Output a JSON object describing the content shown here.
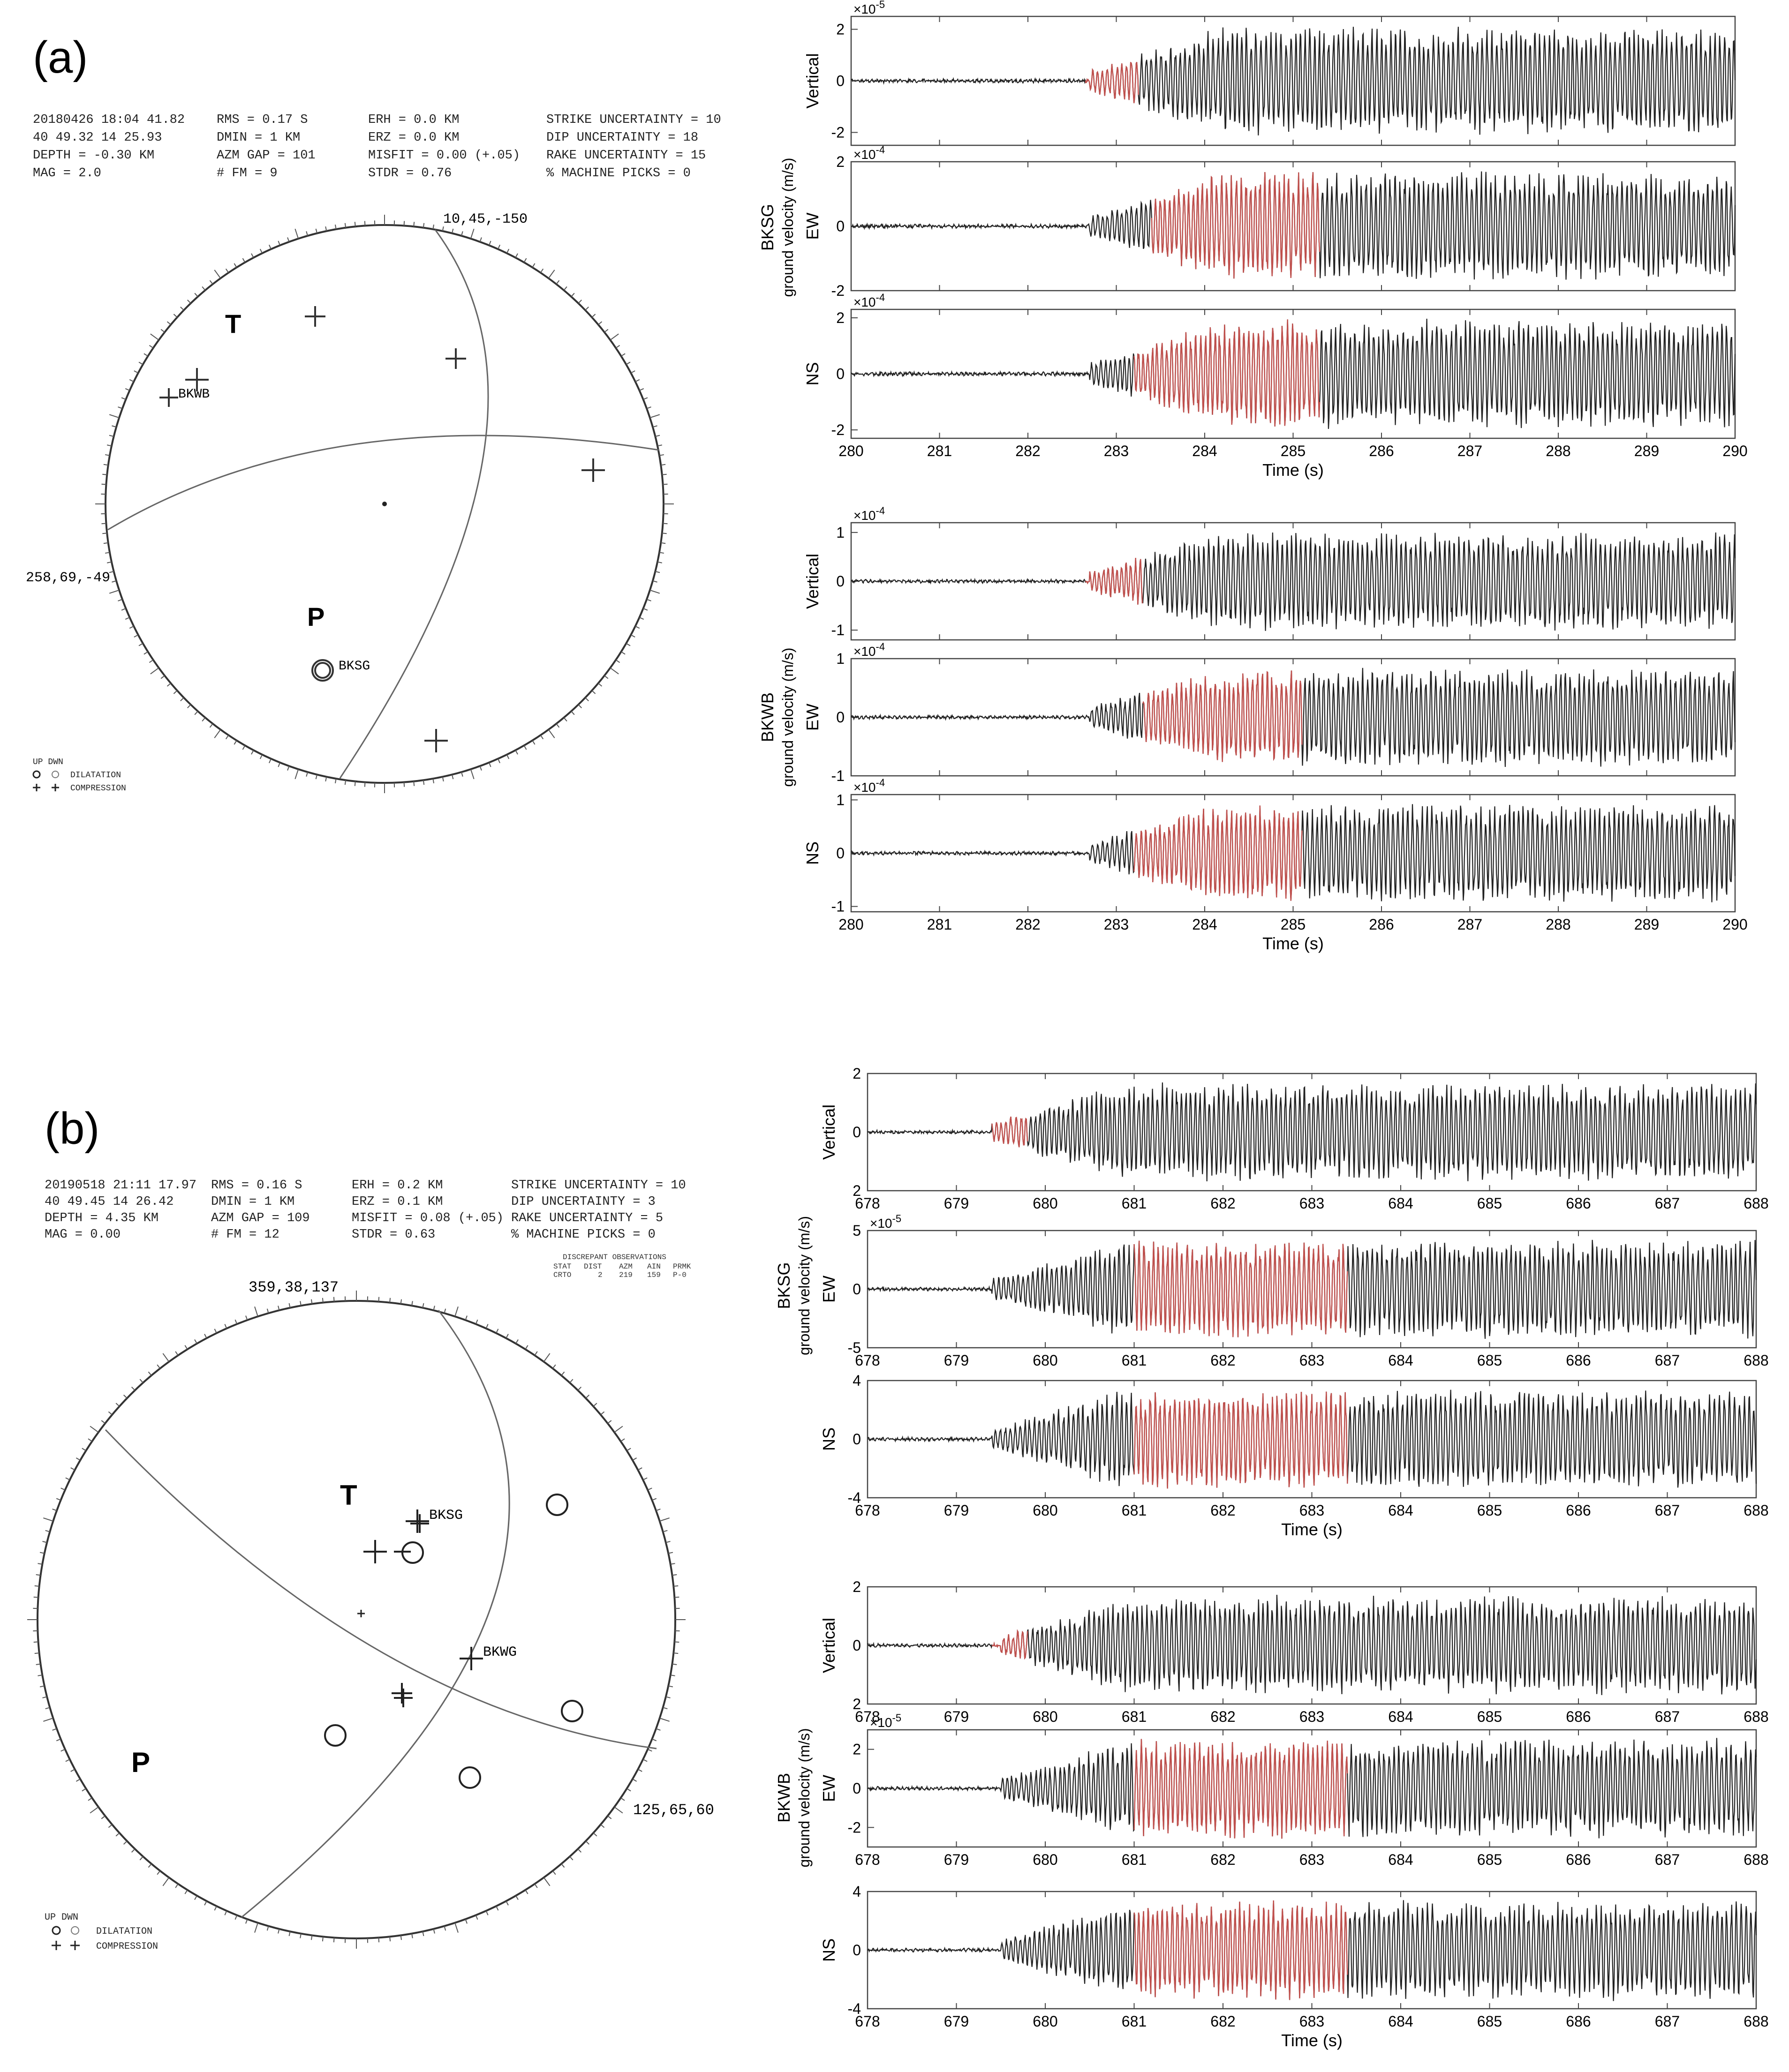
{
  "panels": [
    {
      "label": "(a)",
      "header": [
        [
          "20180426 18:04 41.82",
          "RMS =  0.17 S",
          "ERH =   0.0 KM",
          "STRIKE UNCERTAINTY =  10"
        ],
        [
          "40 49.32  14 25.93",
          "DMIN =    1 KM",
          "ERZ =   0.0 KM",
          "DIP UNCERTAINTY = 18"
        ],
        [
          "DEPTH = -0.30 KM",
          "AZM GAP = 101",
          "MISFIT = 0.00 (+.05)",
          "RAKE UNCERTAINTY =   15"
        ],
        [
          "MAG = 2.0",
          "# FM =    9",
          "STDR = 0.76",
          "% MACHINE PICKS =    0"
        ]
      ],
      "discrepant": null,
      "plane1_label": "10,45,-150",
      "plane2_label": "258,69,-49",
      "T_label": "T",
      "P_label": "P",
      "stations": [
        {
          "name": "BKWB",
          "type": "compression"
        },
        {
          "name": "BKSG",
          "type": "dilatation"
        }
      ],
      "legend": {
        "header": "UP DWN",
        "dilatation": "DILATATION",
        "compression": "COMPRESSION"
      }
    },
    {
      "label": "(b)",
      "header": [
        [
          "20190518 21:11 17.97",
          "RMS = 0.16 S",
          "ERH = 0.2 KM",
          "STRIKE UNCERTAINTY =  10"
        ],
        [
          "40 49.45  14 26.42",
          "DMIN =    1 KM",
          "ERZ = 0.1 KM",
          "DIP UNCERTAINTY =   3"
        ],
        [
          "DEPTH =  4.35 KM",
          "AZM GAP = 109",
          "MISFIT = 0.08 (+.05)",
          "RAKE UNCERTAINTY =   5"
        ],
        [
          "MAG = 0.00",
          "# FM =   12",
          "STDR = 0.63",
          "% MACHINE PICKS =   0"
        ]
      ],
      "discrepant": {
        "title": "DISCREPANT OBSERVATIONS",
        "columns": [
          "STAT",
          "DIST",
          "AZM",
          "AIN",
          "PRMK"
        ],
        "row": [
          "CRTO",
          "2",
          "219",
          "159",
          "P-0"
        ]
      },
      "plane1_label": "359,38,137",
      "plane2_label": "125,65,60",
      "T_label": "T",
      "P_label": "P",
      "stations": [
        {
          "name": "BKSG",
          "type": "compression"
        },
        {
          "name": "BKWG",
          "type": "compression"
        }
      ],
      "legend": {
        "header": "UP DWN",
        "dilatation": "DILATATION",
        "compression": "COMPRESSION"
      }
    }
  ],
  "chart_data": [
    {
      "type": "line",
      "panel": "(a)",
      "station": "BKSG",
      "ylabel": "ground velocity (m/s)",
      "xlabel": "Time (s)",
      "xlim": [
        280,
        290
      ],
      "xticks": [
        "280",
        "281",
        "282",
        "283",
        "284",
        "285",
        "286",
        "287",
        "288",
        "289",
        "290"
      ],
      "channels": [
        {
          "name": "Vertical",
          "exponent": "×10^-5",
          "ylim": [
            -2.5,
            2.5
          ],
          "yticks": [
            "2",
            "0",
            "-2"
          ],
          "highlight": [
            282.65,
            283.25
          ]
        },
        {
          "name": "EW",
          "exponent": "×10^-4",
          "ylim": [
            -2,
            2
          ],
          "yticks": [
            "2",
            "0",
            "-2"
          ],
          "highlight": [
            283.4,
            285.3
          ]
        },
        {
          "name": "NS",
          "exponent": "×10^-4",
          "ylim": [
            -2.3,
            2.3
          ],
          "yticks": [
            "2",
            "0",
            "-2"
          ],
          "highlight": [
            283.2,
            285.3
          ]
        }
      ]
    },
    {
      "type": "line",
      "panel": "(a)",
      "station": "BKWB",
      "ylabel": "ground velocity (m/s)",
      "xlabel": "Time (s)",
      "xlim": [
        280,
        290
      ],
      "xticks": [
        "280",
        "281",
        "282",
        "283",
        "284",
        "285",
        "286",
        "287",
        "288",
        "289",
        "290"
      ],
      "channels": [
        {
          "name": "Vertical",
          "exponent": "×10^-4",
          "ylim": [
            -1.2,
            1.2
          ],
          "yticks": [
            "1",
            "0",
            "-1"
          ],
          "highlight": [
            282.65,
            283.3
          ]
        },
        {
          "name": "EW",
          "exponent": "×10^-4",
          "ylim": [
            -1,
            1
          ],
          "yticks": [
            "1",
            "0",
            "-1"
          ],
          "highlight": [
            283.3,
            285.1
          ]
        },
        {
          "name": "NS",
          "exponent": "×10^-4",
          "ylim": [
            -1.1,
            1.1
          ],
          "yticks": [
            "1",
            "0",
            "-1"
          ],
          "highlight": [
            283.2,
            285.1
          ]
        }
      ]
    },
    {
      "type": "line",
      "panel": "(b)",
      "station": "BKSG",
      "ylabel": "ground velocity (m/s)",
      "xlabel": "Time (s)",
      "xlim": [
        678,
        688
      ],
      "xticks": [
        "678",
        "679",
        "680",
        "681",
        "682",
        "683",
        "684",
        "685",
        "686",
        "687",
        "688"
      ],
      "channels": [
        {
          "name": "Vertical",
          "exponent": "",
          "ylim": [
            -2,
            2
          ],
          "yticks": [
            "2",
            "0",
            "2"
          ],
          "highlight": [
            679.4,
            679.8
          ]
        },
        {
          "name": "EW",
          "exponent": "×10^-5",
          "ylim": [
            -5,
            5
          ],
          "yticks": [
            "5",
            "0",
            "-5"
          ],
          "highlight": [
            681.0,
            683.4
          ]
        },
        {
          "name": "NS",
          "exponent": "",
          "ylim": [
            -4,
            4
          ],
          "yticks": [
            "4",
            "0",
            "-4"
          ],
          "highlight": [
            681.0,
            683.4
          ]
        }
      ]
    },
    {
      "type": "line",
      "panel": "(b)",
      "station": "BKWB",
      "ylabel": "ground velocity (m/s)",
      "xlabel": "Time (s)",
      "xlim": [
        678,
        688
      ],
      "xticks": [
        "678",
        "679",
        "680",
        "681",
        "682",
        "683",
        "684",
        "685",
        "686",
        "687",
        "688"
      ],
      "channels": [
        {
          "name": "Vertical",
          "exponent": "",
          "ylim": [
            -2,
            2
          ],
          "yticks": [
            "2",
            "0",
            "2"
          ],
          "highlight": [
            679.4,
            679.8
          ]
        },
        {
          "name": "EW",
          "exponent": "×10^-5",
          "ylim": [
            -3,
            3
          ],
          "yticks": [
            "2",
            "0",
            "-2"
          ],
          "highlight": [
            681.0,
            683.4
          ]
        },
        {
          "name": "NS",
          "exponent": "",
          "ylim": [
            -4,
            4
          ],
          "yticks": [
            "4",
            "0",
            "-4"
          ],
          "highlight": [
            681.0,
            683.4
          ]
        }
      ]
    }
  ]
}
